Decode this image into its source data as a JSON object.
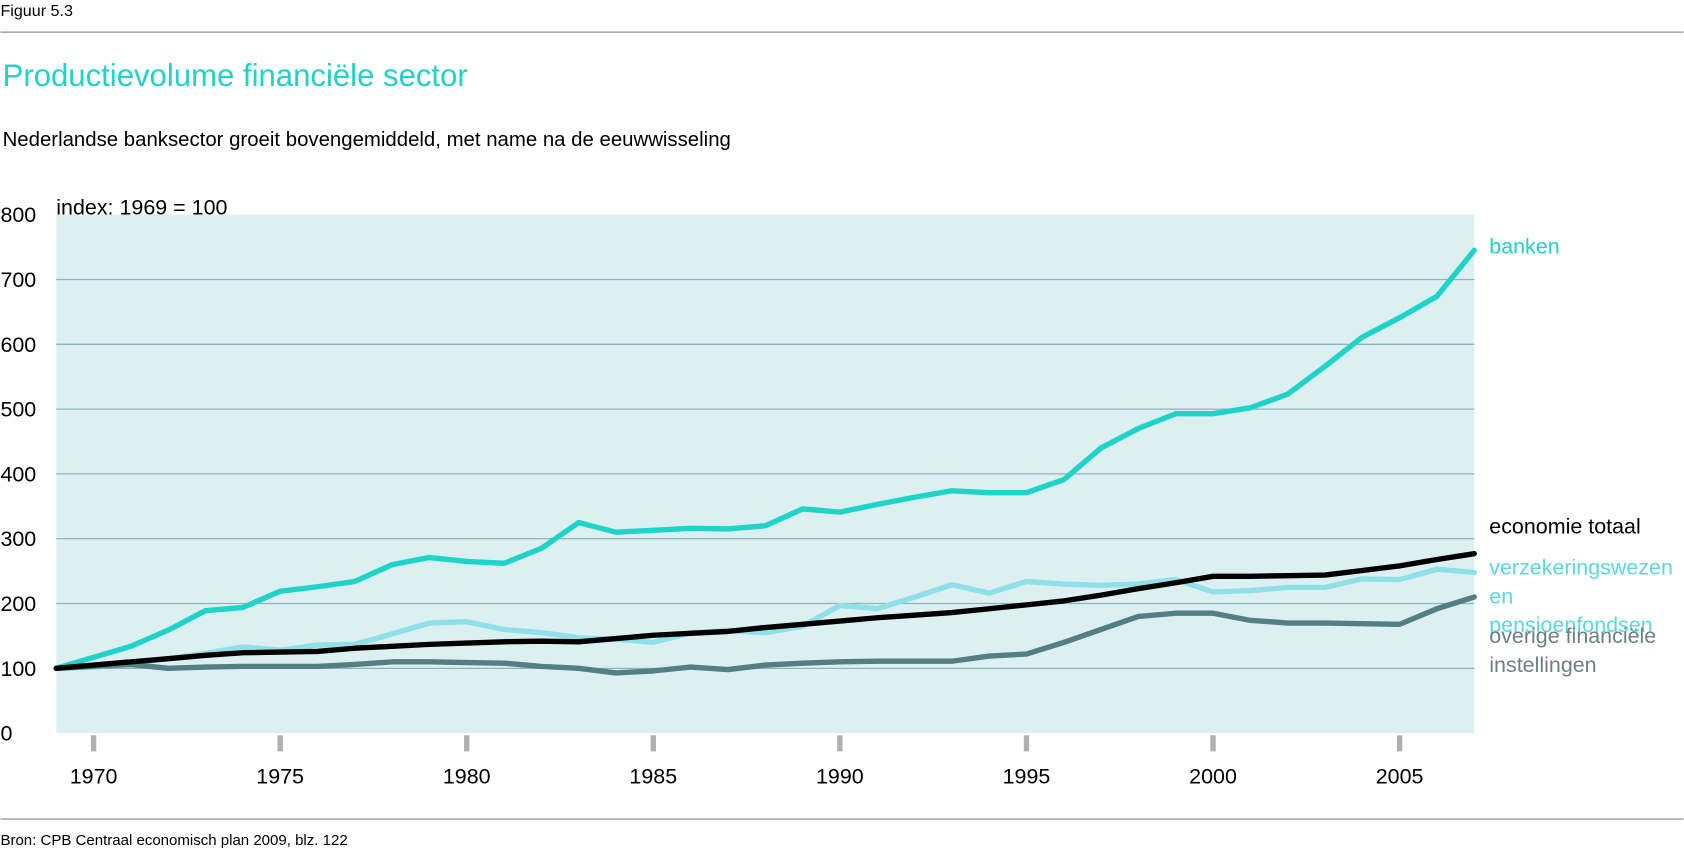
{
  "figure_label": "Figuur 5.3",
  "source": "Bron: CPB Centraal economisch plan 2009, blz. 122",
  "chart_data": {
    "type": "line",
    "title": "Productievolume financiële sector",
    "subtitle": "Nederlandse banksector groeit bovengemiddeld, met name na de eeuwwisseling",
    "y_label": "index: 1969 = 100",
    "x": [
      1969,
      1970,
      1971,
      1972,
      1973,
      1974,
      1975,
      1976,
      1977,
      1978,
      1979,
      1980,
      1981,
      1982,
      1983,
      1984,
      1985,
      1986,
      1987,
      1988,
      1989,
      1990,
      1991,
      1992,
      1993,
      1994,
      1995,
      1996,
      1997,
      1998,
      1999,
      2000,
      2001,
      2002,
      2003,
      2004,
      2005,
      2006,
      2007
    ],
    "xlim": [
      1969,
      2007
    ],
    "xticks": [
      1970,
      1975,
      1980,
      1985,
      1990,
      1995,
      2000,
      2005
    ],
    "ylim": [
      0,
      800
    ],
    "yticks": [
      0,
      100,
      200,
      300,
      400,
      500,
      600,
      700,
      800
    ],
    "grid": true,
    "series": [
      {
        "name": "banken",
        "color": "#1ed3c8",
        "values": [
          100,
          117,
          134,
          159,
          189,
          194,
          219,
          226,
          234,
          260,
          271,
          265,
          262,
          285,
          325,
          310,
          313,
          316,
          315,
          320,
          346,
          341,
          353,
          364,
          374,
          371,
          371,
          391,
          440,
          470,
          493,
          493,
          502,
          523,
          566,
          611,
          641,
          674,
          745
        ]
      },
      {
        "name": "economie totaal",
        "color": "#000000",
        "values": [
          100,
          105,
          110,
          115,
          120,
          124,
          125,
          126,
          131,
          134,
          137,
          139,
          141,
          142,
          141,
          146,
          151,
          154,
          157,
          163,
          168,
          173,
          178,
          182,
          186,
          192,
          198,
          204,
          213,
          223,
          232,
          242,
          242,
          243,
          244,
          251,
          258,
          268,
          277
        ]
      },
      {
        "name": "verzekeringswezen en pensioenfondsen",
        "color": "#8fe0e8",
        "values": [
          100,
          102,
          108,
          115,
          123,
          133,
          128,
          136,
          137,
          153,
          170,
          172,
          160,
          155,
          147,
          145,
          140,
          155,
          158,
          155,
          165,
          197,
          192,
          210,
          229,
          216,
          234,
          230,
          228,
          230,
          237,
          218,
          220,
          225,
          225,
          238,
          237,
          253,
          248
        ]
      },
      {
        "name": "overige financiële instellingen",
        "color": "#527e84",
        "values": [
          100,
          103,
          106,
          100,
          102,
          103,
          103,
          103,
          106,
          110,
          110,
          109,
          108,
          103,
          100,
          93,
          96,
          102,
          98,
          105,
          108,
          110,
          111,
          111,
          111,
          119,
          122,
          140,
          160,
          180,
          185,
          185,
          174,
          170,
          170,
          169,
          168,
          192,
          210
        ]
      }
    ]
  }
}
